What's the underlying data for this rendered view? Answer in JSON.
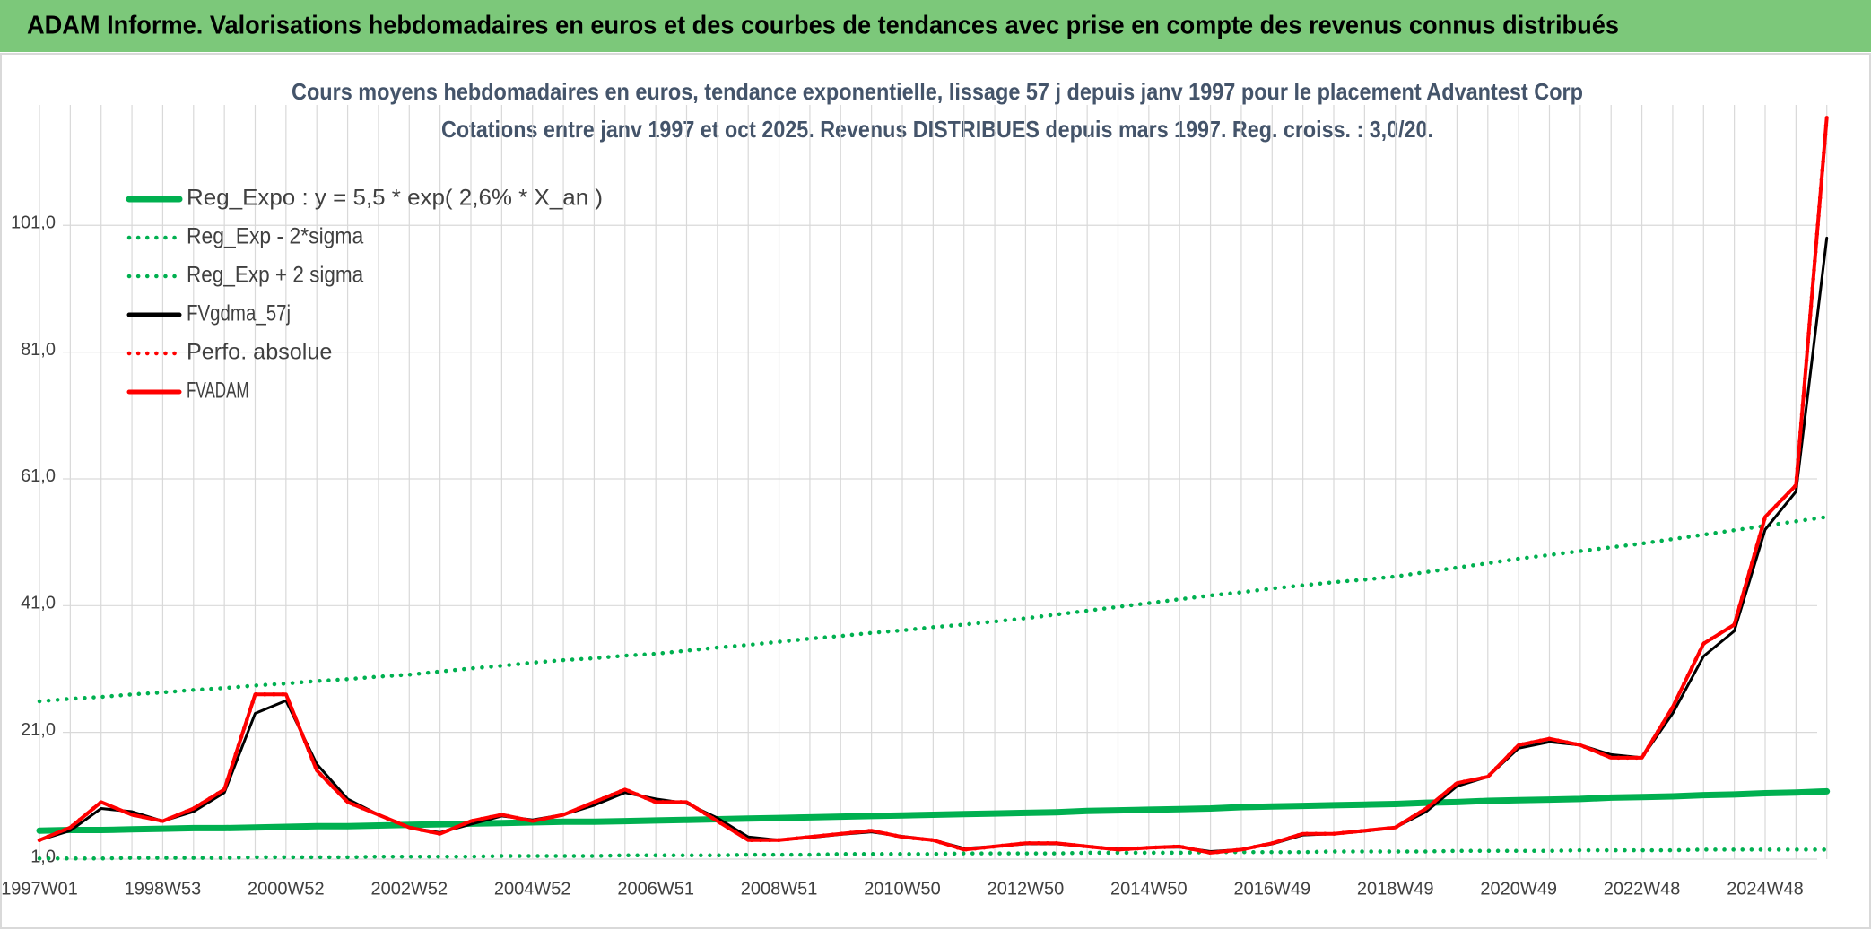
{
  "chart_data": {
    "type": "line",
    "header": "ADAM Informe. Valorisations hebdomadaires en euros et des courbes de tendances avec prise en compte des revenus connus distribués",
    "title": "Cours moyens hebdomadaires en euros, tendance exponentielle, lissage 57 j depuis janv 1997 pour le placement Advantest Corp",
    "subtitle": "Cotations entre janv 1997 et oct 2025. Revenus DISTRIBUES depuis mars 1997. Reg. croiss. : 3,0/20.",
    "categories": [
      "1997W01",
      null,
      null,
      null,
      "1998W53",
      null,
      null,
      null,
      "2000W52",
      null,
      null,
      null,
      "2002W52",
      null,
      null,
      null,
      "2004W52",
      null,
      null,
      null,
      "2006W51",
      null,
      null,
      null,
      "2008W51",
      null,
      null,
      null,
      "2010W50",
      null,
      null,
      null,
      "2012W50",
      null,
      null,
      null,
      "2014W50",
      null,
      null,
      null,
      "2016W49",
      null,
      null,
      null,
      "2018W49",
      null,
      null,
      null,
      "2020W49",
      null,
      null,
      null,
      "2022W48",
      null,
      null,
      null,
      "2024W48",
      null,
      null
    ],
    "ylim": [
      1,
      120
    ],
    "yticks": [
      {
        "value": 1,
        "label": "1,0"
      },
      {
        "value": 21,
        "label": "21,0"
      },
      {
        "value": 41,
        "label": "41,0"
      },
      {
        "value": 61,
        "label": "61,0"
      },
      {
        "value": 81,
        "label": "81,0"
      },
      {
        "value": 101,
        "label": "101,0"
      }
    ],
    "grid": true,
    "legend": "top-left",
    "series": [
      {
        "name": "Reg_Expo : y = 5,5 * exp( 2,6% *  X_an )",
        "color": "#00b050",
        "style": "thick",
        "values": [
          5.5,
          5.6,
          5.6,
          5.7,
          5.8,
          5.9,
          5.9,
          6.0,
          6.1,
          6.2,
          6.2,
          6.3,
          6.4,
          6.5,
          6.6,
          6.7,
          6.8,
          6.9,
          6.9,
          7.0,
          7.1,
          7.2,
          7.3,
          7.4,
          7.5,
          7.6,
          7.7,
          7.8,
          7.9,
          8.0,
          8.1,
          8.2,
          8.3,
          8.4,
          8.6,
          8.7,
          8.8,
          8.9,
          9.0,
          9.2,
          9.3,
          9.4,
          9.5,
          9.6,
          9.7,
          9.9,
          10.0,
          10.2,
          10.3,
          10.4,
          10.5,
          10.7,
          10.8,
          10.9,
          11.1,
          11.2,
          11.4,
          11.5,
          11.7
        ]
      },
      {
        "name": "Reg_Exp - 2*sigma",
        "color": "#00b050",
        "style": "dotted",
        "values": [
          1.1,
          1.1,
          1.1,
          1.2,
          1.2,
          1.2,
          1.2,
          1.3,
          1.3,
          1.3,
          1.3,
          1.4,
          1.4,
          1.4,
          1.4,
          1.5,
          1.5,
          1.5,
          1.5,
          1.6,
          1.6,
          1.6,
          1.6,
          1.7,
          1.7,
          1.7,
          1.8,
          1.8,
          1.8,
          1.8,
          1.9,
          1.9,
          1.9,
          1.9,
          2.0,
          2.0,
          2.0,
          2.0,
          2.1,
          2.1,
          2.1,
          2.1,
          2.2,
          2.2,
          2.2,
          2.2,
          2.3,
          2.3,
          2.3,
          2.3,
          2.4,
          2.4,
          2.4,
          2.4,
          2.5,
          2.5,
          2.5,
          2.5,
          2.5
        ]
      },
      {
        "name": "Reg_Exp + 2 sigma",
        "color": "#00b050",
        "style": "dotted",
        "values": [
          25.9,
          26.3,
          26.6,
          27.0,
          27.3,
          27.7,
          28.0,
          28.4,
          28.7,
          29.1,
          29.4,
          29.8,
          30.1,
          30.6,
          31.1,
          31.5,
          32.0,
          32.4,
          32.7,
          33.1,
          33.4,
          33.9,
          34.4,
          34.8,
          35.3,
          35.8,
          36.2,
          36.7,
          37.1,
          37.6,
          38.0,
          38.5,
          39.0,
          39.6,
          40.2,
          40.8,
          41.4,
          42.0,
          42.6,
          43.1,
          43.7,
          44.2,
          44.7,
          45.1,
          45.6,
          46.3,
          47.0,
          47.7,
          48.4,
          49.0,
          49.6,
          50.2,
          50.8,
          51.5,
          52.2,
          52.9,
          53.6,
          54.3,
          55.0
        ]
      },
      {
        "name": "FVgdma_57j",
        "color": "#000000",
        "style": "solid",
        "values": [
          4,
          5.5,
          9,
          8.5,
          7,
          8.5,
          11.5,
          24,
          26,
          16,
          10.5,
          8,
          6,
          5.2,
          6.5,
          7.8,
          7.2,
          8,
          9.5,
          11.5,
          10.5,
          9.8,
          7.5,
          4.5,
          4,
          4.4,
          4.9,
          5.3,
          4.6,
          4,
          2.7,
          3,
          3.4,
          3.4,
          3,
          2.6,
          2.8,
          2.9,
          2.2,
          2.5,
          3.4,
          4.8,
          5,
          5.4,
          6,
          8.5,
          12.5,
          14,
          18.5,
          19.5,
          19,
          17.5,
          17,
          24,
          33,
          37,
          53,
          59,
          99
        ]
      },
      {
        "name": "Perfo. absolue",
        "color": "#ff0000",
        "style": "dotted",
        "values": [
          4,
          6,
          10,
          8,
          7,
          9,
          12,
          27,
          27,
          15,
          10,
          8,
          6,
          5,
          7,
          8,
          7,
          8,
          10,
          12,
          10,
          10,
          7,
          4,
          4,
          4.5,
          5,
          5.5,
          4.5,
          4,
          2.5,
          3,
          3.5,
          3.5,
          3,
          2.5,
          2.8,
          3,
          2,
          2.5,
          3.5,
          5,
          5,
          5.5,
          6,
          9,
          13,
          14,
          19,
          20,
          19,
          17,
          17,
          25,
          35,
          38,
          55,
          60,
          118
        ]
      },
      {
        "name": "FVADAM",
        "color": "#ff0000",
        "style": "solid",
        "values": [
          4,
          6,
          10,
          8,
          7,
          9,
          12,
          27,
          27,
          15,
          10,
          8,
          6,
          5,
          7,
          8,
          7,
          8,
          10,
          12,
          10,
          10,
          7,
          4,
          4,
          4.5,
          5,
          5.5,
          4.5,
          4,
          2.5,
          3,
          3.5,
          3.5,
          3,
          2.5,
          2.8,
          3,
          2,
          2.5,
          3.5,
          5,
          5,
          5.5,
          6,
          9,
          13,
          14,
          19,
          20,
          19,
          17,
          17,
          25,
          35,
          38,
          55,
          60,
          118
        ]
      }
    ]
  }
}
